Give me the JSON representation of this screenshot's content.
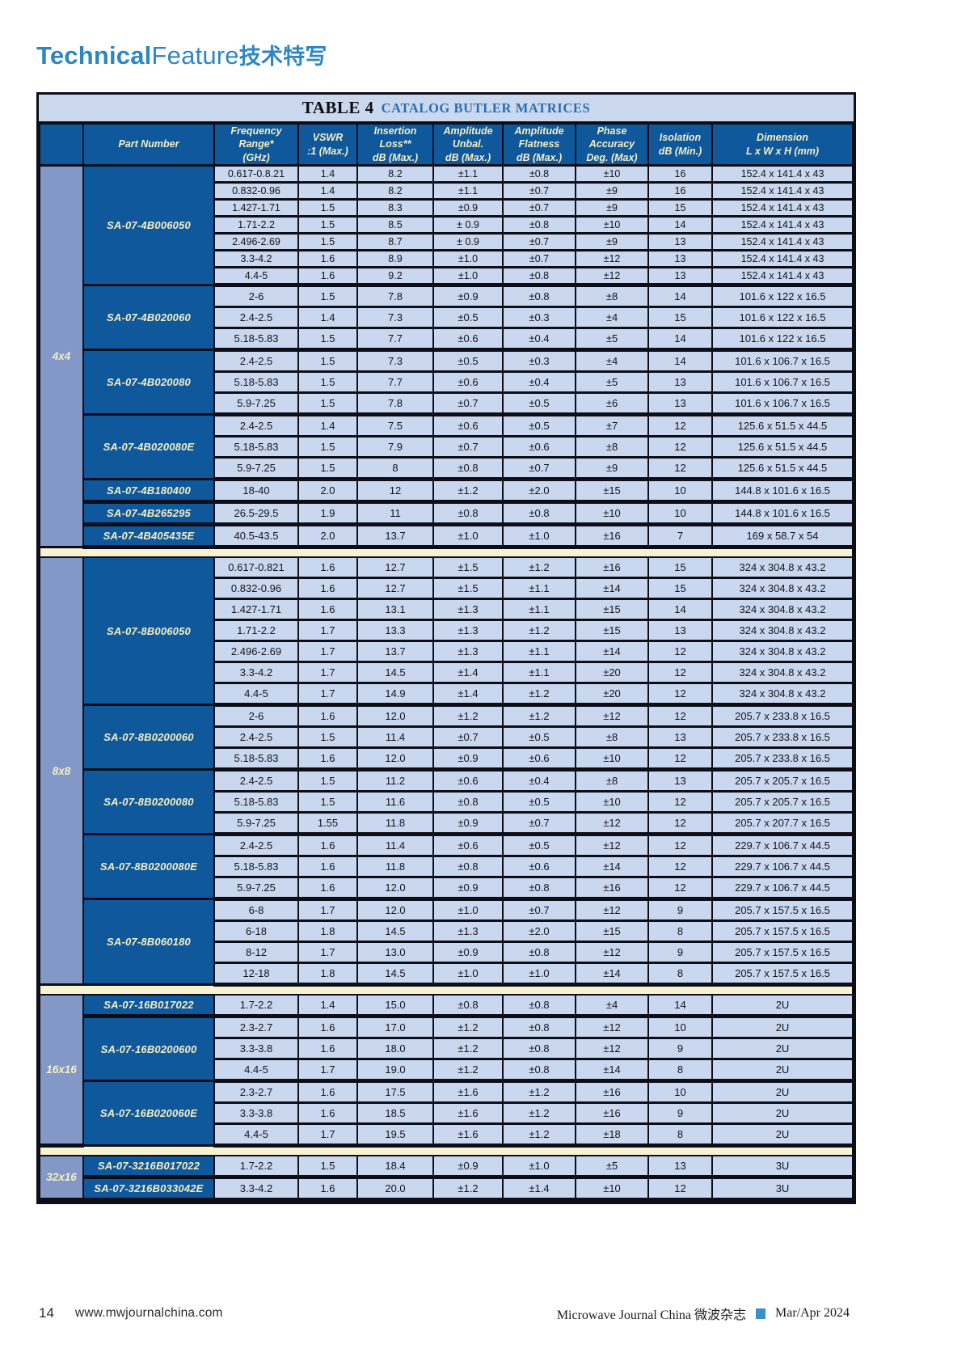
{
  "page": {
    "masthead": {
      "en_bold": "Technical",
      "en_light": "Feature",
      "cn": "技术特写"
    },
    "footer": {
      "page_number": "14",
      "website": "www.mwjournalchina.com",
      "journal": "Microwave Journal China 微波杂志",
      "issue": "Mar/Apr 2024"
    }
  },
  "colors": {
    "brand_blue": "#2e86c3",
    "table_header_blue": "#0f589c",
    "accent_yellow_text": "#f5efc2",
    "row_fill": "#c9d8ef",
    "group_col_fill": "#8398c7",
    "separator_cream": "#f7f2d2",
    "title_band": "#cbd9ef"
  },
  "table": {
    "title_prefix": "TABLE 4",
    "title": "CATALOG BUTLER MATRICES",
    "columns": [
      "Part Number",
      "Frequency\nRange*\n(GHz)",
      "VSWR\n:1 (Max.)",
      "Insertion\nLoss**\ndB (Max.)",
      "Amplitude\nUnbal.\ndB (Max.)",
      "Amplitude\nFlatness\ndB (Max.)",
      "Phase\nAccuracy\nDeg. (Max)",
      "Isolation\ndB (Min.)",
      "Dimension\nL x W x H (mm)"
    ],
    "sections": [
      {
        "size": "4x4",
        "parts": [
          {
            "part": "SA-07-4B006050",
            "rows": [
              [
                "0.617-0.8.21",
                "1.4",
                "8.2",
                "±1.1",
                "±0.8",
                "±10",
                "16",
                "152.4 x 141.4 x 43"
              ],
              [
                "0.832-0.96",
                "1.4",
                "8.2",
                "±1.1",
                "±0.7",
                "±9",
                "16",
                "152.4 x 141.4 x 43"
              ],
              [
                "1.427-1.71",
                "1.5",
                "8.3",
                "±0.9",
                "±0.7",
                "±9",
                "15",
                "152.4 x 141.4 x 43"
              ],
              [
                "1.71-2.2",
                "1.5",
                "8.5",
                "± 0.9",
                "±0.8",
                "±10",
                "14",
                "152.4 x 141.4 x 43"
              ],
              [
                "2.496-2.69",
                "1.5",
                "8.7",
                "± 0.9",
                "±0.7",
                "±9",
                "13",
                "152.4 x 141.4 x 43"
              ],
              [
                "3.3-4.2",
                "1.6",
                "8.9",
                "±1.0",
                "±0.7",
                "±12",
                "13",
                "152.4 x 141.4 x 43"
              ],
              [
                "4.4-5",
                "1.6",
                "9.2",
                "±1.0",
                "±0.8",
                "±12",
                "13",
                "152.4 x 141.4 x 43"
              ]
            ]
          },
          {
            "part": "SA-07-4B020060",
            "rows": [
              [
                "2-6",
                "1.5",
                "7.8",
                "±0.9",
                "±0.8",
                "±8",
                "14",
                "101.6 x 122 x 16.5"
              ],
              [
                "2.4-2.5",
                "1.4",
                "7.3",
                "±0.5",
                "±0.3",
                "±4",
                "15",
                "101.6 x 122 x 16.5"
              ],
              [
                "5.18-5.83",
                "1.5",
                "7.7",
                "±0.6",
                "±0.4",
                "±5",
                "14",
                "101.6 x 122 x 16.5"
              ]
            ]
          },
          {
            "part": "SA-07-4B020080",
            "rows": [
              [
                "2.4-2.5",
                "1.5",
                "7.3",
                "±0.5",
                "±0.3",
                "±4",
                "14",
                "101.6 x 106.7 x 16.5"
              ],
              [
                "5.18-5.83",
                "1.5",
                "7.7",
                "±0.6",
                "±0.4",
                "±5",
                "13",
                "101.6 x 106.7 x 16.5"
              ],
              [
                "5.9-7.25",
                "1.5",
                "7.8",
                "±0.7",
                "±0.5",
                "±6",
                "13",
                "101.6 x 106.7 x 16.5"
              ]
            ]
          },
          {
            "part": "SA-07-4B020080E",
            "rows": [
              [
                "2.4-2.5",
                "1.4",
                "7.5",
                "±0.6",
                "±0.5",
                "±7",
                "12",
                "125.6 x 51.5 x 44.5"
              ],
              [
                "5.18-5.83",
                "1.5",
                "7.9",
                "±0.7",
                "±0.6",
                "±8",
                "12",
                "125.6 x 51.5 x 44.5"
              ],
              [
                "5.9-7.25",
                "1.5",
                "8",
                "±0.8",
                "±0.7",
                "±9",
                "12",
                "125.6 x 51.5 x 44.5"
              ]
            ]
          },
          {
            "part": "SA-07-4B180400",
            "rows": [
              [
                "18-40",
                "2.0",
                "12",
                "±1.2",
                "±2.0",
                "±15",
                "10",
                "144.8 x 101.6 x 16.5"
              ]
            ]
          },
          {
            "part": "SA-07-4B265295",
            "rows": [
              [
                "26.5-29.5",
                "1.9",
                "11",
                "±0.8",
                "±0.8",
                "±10",
                "10",
                "144.8 x 101.6 x 16.5"
              ]
            ]
          },
          {
            "part": "SA-07-4B405435E",
            "rows": [
              [
                "40.5-43.5",
                "2.0",
                "13.7",
                "±1.0",
                "±1.0",
                "±16",
                "7",
                "169 x 58.7 x 54"
              ]
            ]
          }
        ]
      },
      {
        "size": "8x8",
        "parts": [
          {
            "part": "SA-07-8B006050",
            "rows": [
              [
                "0.617-0.821",
                "1.6",
                "12.7",
                "±1.5",
                "±1.2",
                "±16",
                "15",
                "324 x 304.8 x 43.2"
              ],
              [
                "0.832-0.96",
                "1.6",
                "12.7",
                "±1.5",
                "±1.1",
                "±14",
                "15",
                "324 x 304.8 x 43.2"
              ],
              [
                "1.427-1.71",
                "1.6",
                "13.1",
                "±1.3",
                "±1.1",
                "±15",
                "14",
                "324 x 304.8 x 43.2"
              ],
              [
                "1.71-2.2",
                "1.7",
                "13.3",
                "±1.3",
                "±1.2",
                "±15",
                "13",
                "324 x 304.8 x 43.2"
              ],
              [
                "2.496-2.69",
                "1.7",
                "13.7",
                "±1.3",
                "±1.1",
                "±14",
                "12",
                "324 x 304.8 x 43.2"
              ],
              [
                "3.3-4.2",
                "1.7",
                "14.5",
                "±1.4",
                "±1.1",
                "±20",
                "12",
                "324 x 304.8 x 43.2"
              ],
              [
                "4.4-5",
                "1.7",
                "14.9",
                "±1.4",
                "±1.2",
                "±20",
                "12",
                "324 x 304.8 x 43.2"
              ]
            ]
          },
          {
            "part": "SA-07-8B0200060",
            "rows": [
              [
                "2-6",
                "1.6",
                "12.0",
                "±1.2",
                "±1.2",
                "±12",
                "12",
                "205.7 x 233.8 x 16.5"
              ],
              [
                "2.4-2.5",
                "1.5",
                "11.4",
                "±0.7",
                "±0.5",
                "±8",
                "13",
                "205.7 x 233.8 x 16.5"
              ],
              [
                "5.18-5.83",
                "1.6",
                "12.0",
                "±0.9",
                "±0.6",
                "±10",
                "12",
                "205.7 x 233.8 x 16.5"
              ]
            ]
          },
          {
            "part": "SA-07-8B0200080",
            "rows": [
              [
                "2.4-2.5",
                "1.5",
                "11.2",
                "±0.6",
                "±0.4",
                "±8",
                "13",
                "205.7 x 205.7 x 16.5"
              ],
              [
                "5.18-5.83",
                "1.5",
                "11.6",
                "±0.8",
                "±0.5",
                "±10",
                "12",
                "205.7 x 205.7 x 16.5"
              ],
              [
                "5.9-7.25",
                "1.55",
                "11.8",
                "±0.9",
                "±0.7",
                "±12",
                "12",
                "205.7 x 207.7 x 16.5"
              ]
            ]
          },
          {
            "part": "SA-07-8B0200080E",
            "rows": [
              [
                "2.4-2.5",
                "1.6",
                "11.4",
                "±0.6",
                "±0.5",
                "±12",
                "12",
                "229.7 x 106.7 x 44.5"
              ],
              [
                "5.18-5.83",
                "1.6",
                "11.8",
                "±0.8",
                "±0.6",
                "±14",
                "12",
                "229.7 x 106.7 x 44.5"
              ],
              [
                "5.9-7.25",
                "1.6",
                "12.0",
                "±0.9",
                "±0.8",
                "±16",
                "12",
                "229.7 x 106.7 x 44.5"
              ]
            ]
          },
          {
            "part": "SA-07-8B060180",
            "rows": [
              [
                "6-8",
                "1.7",
                "12.0",
                "±1.0",
                "±0.7",
                "±12",
                "9",
                "205.7 x 157.5 x 16.5"
              ],
              [
                "6-18",
                "1.8",
                "14.5",
                "±1.3",
                "±2.0",
                "±15",
                "8",
                "205.7 x 157.5 x 16.5"
              ],
              [
                "8-12",
                "1.7",
                "13.0",
                "±0.9",
                "±0.8",
                "±12",
                "9",
                "205.7 x 157.5 x 16.5"
              ],
              [
                "12-18",
                "1.8",
                "14.5",
                "±1.0",
                "±1.0",
                "±14",
                "8",
                "205.7 x 157.5 x 16.5"
              ]
            ]
          }
        ]
      },
      {
        "size": "16x16",
        "parts": [
          {
            "part": "SA-07-16B017022",
            "rows": [
              [
                "1.7-2.2",
                "1.4",
                "15.0",
                "±0.8",
                "±0.8",
                "±4",
                "14",
                "2U"
              ]
            ]
          },
          {
            "part": "SA-07-16B0200600",
            "rows": [
              [
                "2.3-2.7",
                "1.6",
                "17.0",
                "±1.2",
                "±0.8",
                "±12",
                "10",
                "2U"
              ],
              [
                "3.3-3.8",
                "1.6",
                "18.0",
                "±1.2",
                "±0.8",
                "±12",
                "9",
                "2U"
              ],
              [
                "4.4-5",
                "1.7",
                "19.0",
                "±1.2",
                "±0.8",
                "±14",
                "8",
                "2U"
              ]
            ]
          },
          {
            "part": "SA-07-16B020060E",
            "rows": [
              [
                "2.3-2.7",
                "1.6",
                "17.5",
                "±1.6",
                "±1.2",
                "±16",
                "10",
                "2U"
              ],
              [
                "3.3-3.8",
                "1.6",
                "18.5",
                "±1.6",
                "±1.2",
                "±16",
                "9",
                "2U"
              ],
              [
                "4.4-5",
                "1.7",
                "19.5",
                "±1.6",
                "±1.2",
                "±18",
                "8",
                "2U"
              ]
            ]
          }
        ]
      },
      {
        "size": "32x16",
        "parts": [
          {
            "part": "SA-07-3216B017022",
            "rows": [
              [
                "1.7-2.2",
                "1.5",
                "18.4",
                "±0.9",
                "±1.0",
                "±5",
                "13",
                "3U"
              ]
            ]
          },
          {
            "part": "SA-07-3216B033042E",
            "rows": [
              [
                "3.3-4.2",
                "1.6",
                "20.0",
                "±1.2",
                "±1.4",
                "±10",
                "12",
                "3U"
              ]
            ]
          }
        ]
      }
    ]
  }
}
